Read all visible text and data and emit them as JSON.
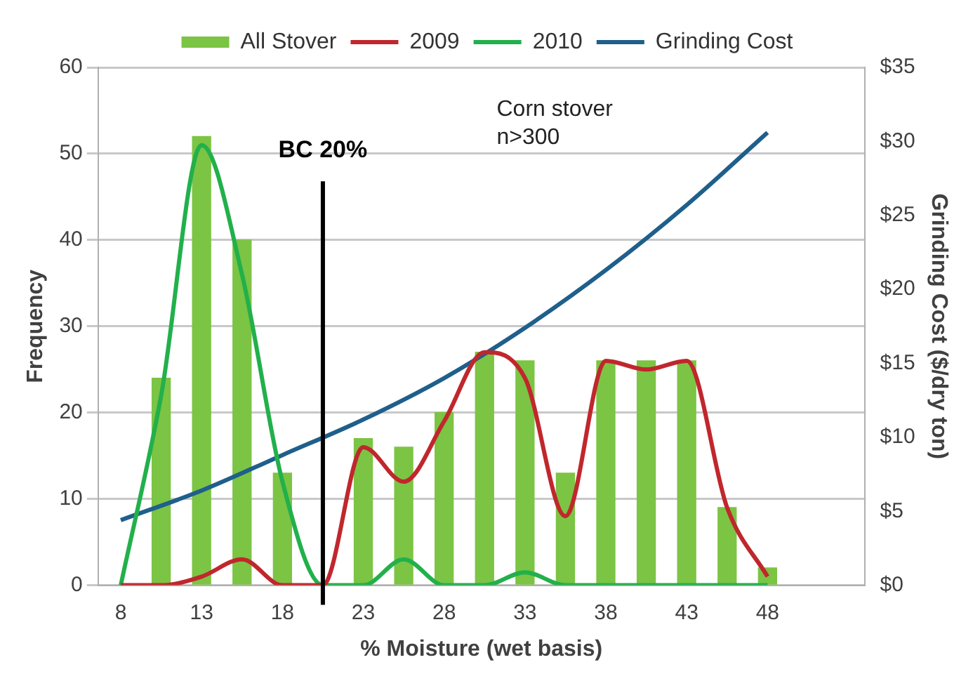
{
  "chart_data": {
    "type": "bar",
    "xlabel": "% Moisture (wet basis)",
    "ylabel": "Frequency",
    "y2label": "Grinding Cost ($/dry ton)",
    "xlim": [
      6.6,
      54
    ],
    "xticks": [
      8,
      13,
      18,
      23,
      28,
      33,
      38,
      43,
      48
    ],
    "ylim": [
      0,
      60
    ],
    "yticks": [
      0,
      10,
      20,
      30,
      40,
      50,
      60
    ],
    "y2lim": [
      0,
      35
    ],
    "y2ticks": [
      {
        "value": 0,
        "label": "$0"
      },
      {
        "value": 5,
        "label": "$5"
      },
      {
        "value": 10,
        "label": "$10"
      },
      {
        "value": 15,
        "label": "$15"
      },
      {
        "value": 20,
        "label": "$20"
      },
      {
        "value": 25,
        "label": "$25"
      },
      {
        "value": 30,
        "label": "$30"
      },
      {
        "value": 35,
        "label": "$35"
      }
    ],
    "series": [
      {
        "name": "All Stover",
        "color": "#7cc444",
        "x": [
          10.5,
          13,
          15.5,
          18,
          23,
          25.5,
          28,
          30.5,
          33,
          35.5,
          38,
          40.5,
          43,
          45.5,
          48
        ],
        "values": [
          24,
          52,
          40,
          13,
          17,
          16,
          20,
          27,
          26,
          13,
          26,
          26,
          26,
          9,
          2
        ]
      },
      {
        "name": "2009",
        "type": "line",
        "color": "#c0272d",
        "x": [
          8,
          10.5,
          13,
          15.5,
          18,
          20.5,
          23,
          25.5,
          28,
          30.5,
          33,
          35.5,
          38,
          40.5,
          43,
          45.5,
          48
        ],
        "values": [
          0,
          0,
          1,
          3,
          0,
          0,
          16,
          12,
          19,
          27,
          24,
          8,
          26,
          25,
          26,
          9,
          1
        ]
      },
      {
        "name": "2010",
        "type": "line",
        "color": "#22b04b",
        "x": [
          8,
          10.5,
          13,
          15.5,
          18,
          20.5,
          23,
          25.5,
          28,
          30.5,
          33,
          35.5,
          38,
          40.5,
          43,
          45.5,
          48
        ],
        "values": [
          0,
          22,
          51,
          36,
          12,
          0,
          0,
          3,
          0,
          0,
          1.5,
          0,
          0,
          0,
          0,
          0,
          0
        ]
      },
      {
        "name": "Grinding Cost",
        "type": "line",
        "axis": "y2",
        "color": "#1f5f8b",
        "x": [
          8,
          13,
          18,
          23,
          28,
          33,
          38,
          43,
          48
        ],
        "values": [
          4.4,
          6.4,
          8.8,
          11.2,
          14,
          17.4,
          21.3,
          25.7,
          30.6
        ]
      }
    ],
    "ref_lines": [
      {
        "axis": "x",
        "value": 20.5,
        "label": "BC 20%",
        "color": "#000000"
      }
    ],
    "annotations": [
      "Corn stover\nn>300"
    ],
    "grid": "y",
    "legend": "top",
    "line_style": "solid",
    "marker": "none"
  }
}
